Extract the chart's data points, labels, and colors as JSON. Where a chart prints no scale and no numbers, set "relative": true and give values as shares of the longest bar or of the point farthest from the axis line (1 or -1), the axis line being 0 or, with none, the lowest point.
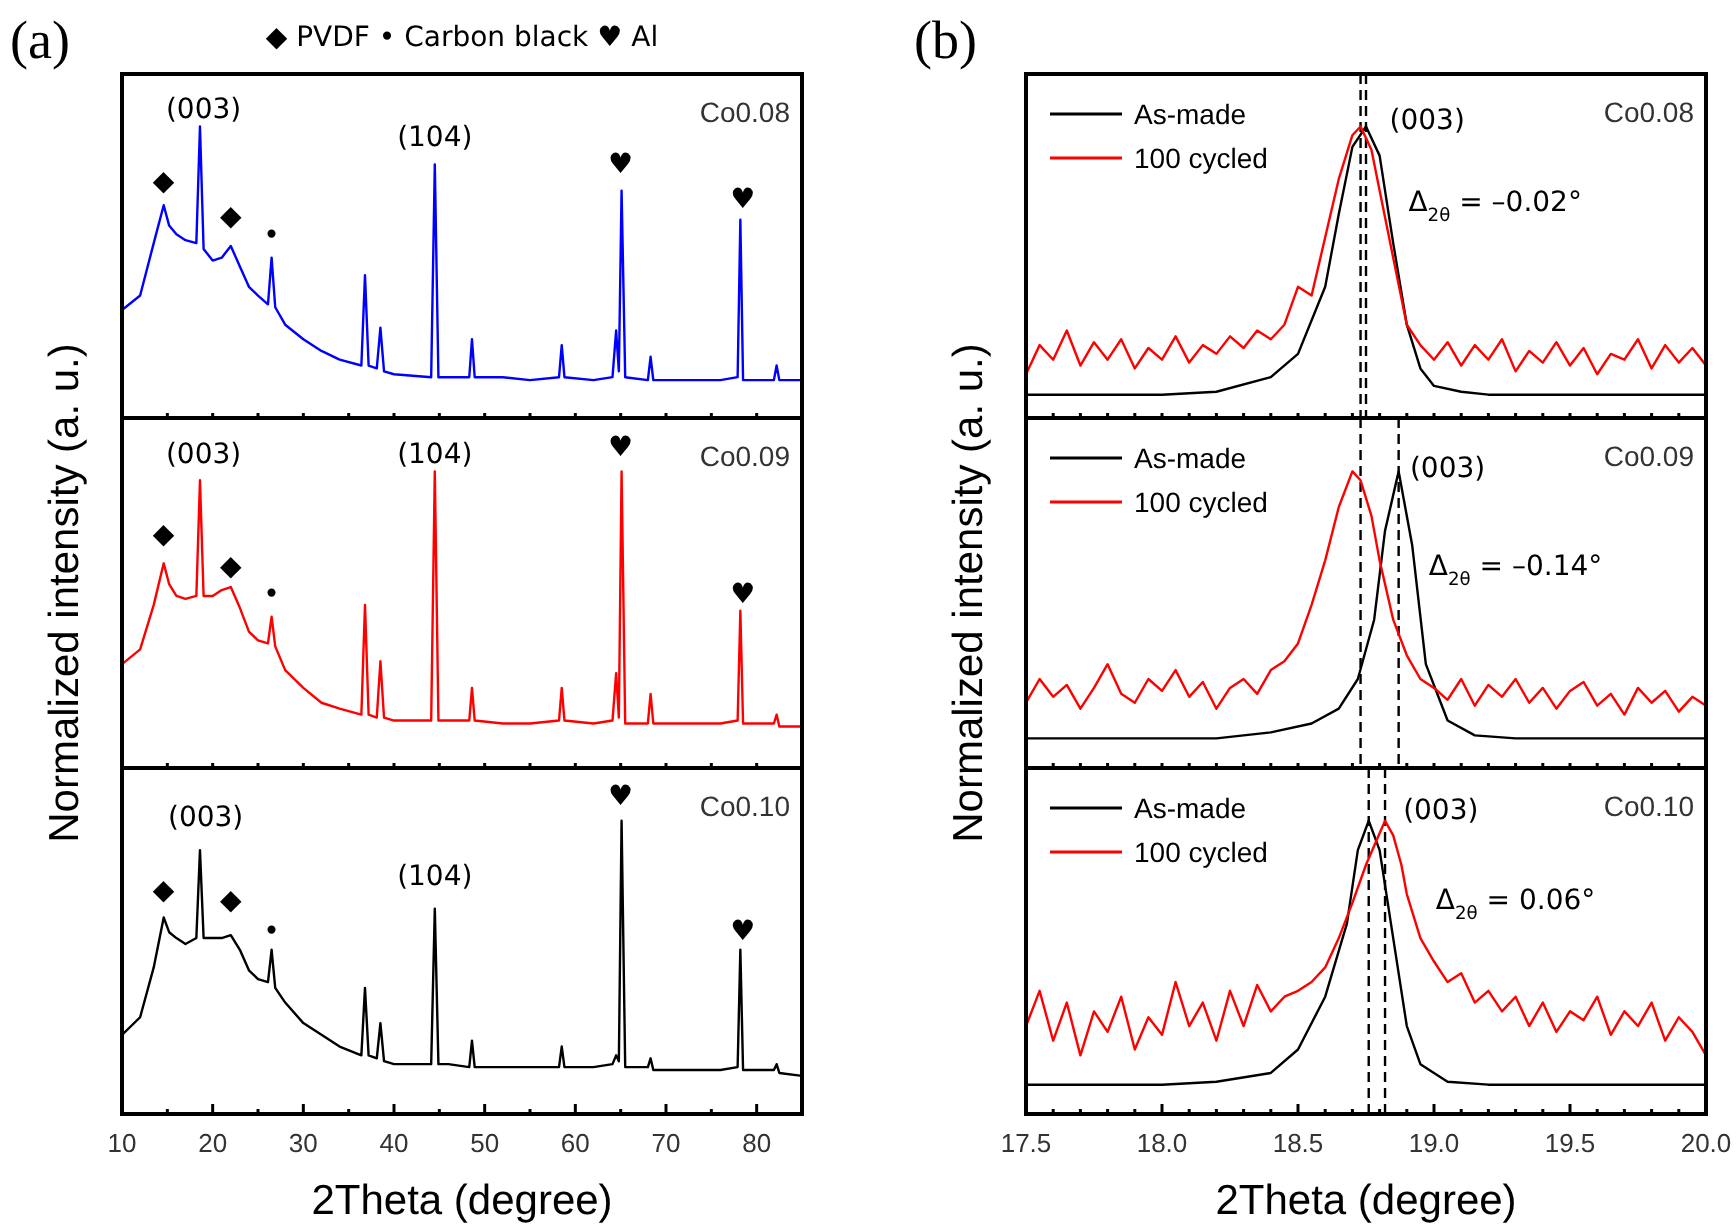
{
  "chart_data": [
    {
      "type": "line",
      "relative": true,
      "title": "(a)",
      "subtitle": "Co0.08",
      "tick_labels": false,
      "x": [
        10,
        12,
        13.5,
        14.6,
        15.2,
        16,
        17,
        18.2,
        18.6,
        19.0,
        20,
        21,
        22,
        23,
        24,
        25,
        26.1,
        26.5,
        26.9,
        28,
        30,
        32,
        34,
        36.4,
        36.8,
        37.2,
        38.1,
        38.5,
        38.9,
        40,
        44.1,
        44.5,
        44.9,
        46,
        48.3,
        48.6,
        48.9,
        52,
        55,
        58.2,
        58.5,
        58.8,
        62,
        64.1,
        64.5,
        64.8,
        65.1,
        65.5,
        68,
        68.3,
        68.6,
        72,
        76,
        77.9,
        78.2,
        78.5,
        81.9,
        82.2,
        82.5,
        85
      ],
      "xlim": [
        10,
        85
      ],
      "xticks": [
        {
          "value": 10,
          "label": null
        },
        {
          "value": 15,
          "label": null
        },
        {
          "value": 20,
          "label": null
        },
        {
          "value": 25,
          "label": null
        },
        {
          "value": 30,
          "label": null
        },
        {
          "value": 35,
          "label": null
        },
        {
          "value": 40,
          "label": null
        },
        {
          "value": 45,
          "label": null
        },
        {
          "value": 50,
          "label": null
        },
        {
          "value": 55,
          "label": null
        },
        {
          "value": 60,
          "label": null
        },
        {
          "value": 65,
          "label": null
        },
        {
          "value": 70,
          "label": null
        },
        {
          "value": 75,
          "label": null
        },
        {
          "value": 80,
          "label": null
        },
        {
          "value": 85,
          "label": null
        }
      ],
      "series": [
        {
          "color": "#0000ff",
          "values": [
            0.37,
            0.42,
            0.6,
            0.73,
            0.66,
            0.63,
            0.61,
            0.6,
            1.0,
            0.58,
            0.54,
            0.55,
            0.59,
            0.52,
            0.45,
            0.42,
            0.39,
            0.55,
            0.38,
            0.32,
            0.27,
            0.23,
            0.2,
            0.18,
            0.49,
            0.18,
            0.17,
            0.31,
            0.16,
            0.15,
            0.14,
            0.87,
            0.14,
            0.14,
            0.14,
            0.27,
            0.14,
            0.14,
            0.13,
            0.14,
            0.25,
            0.14,
            0.13,
            0.14,
            0.3,
            0.16,
            0.78,
            0.14,
            0.13,
            0.21,
            0.13,
            0.13,
            0.13,
            0.14,
            0.68,
            0.13,
            0.13,
            0.18,
            0.13,
            0.13
          ]
        }
      ],
      "annotations": [
        "◆ PVDF   • Carbon black   ♥ Al",
        "(003)",
        "(104)",
        "◆",
        "◆",
        "•",
        "♥",
        "♥"
      ]
    },
    {
      "type": "line",
      "relative": true,
      "subtitle": "Co0.09",
      "tick_labels": false,
      "ylabel": "Normalized intensity (a. u.)",
      "x": [
        10,
        12,
        13.5,
        14.6,
        15.2,
        16,
        17,
        18.2,
        18.6,
        19.0,
        20,
        21,
        22,
        23,
        24,
        25,
        26.1,
        26.5,
        26.9,
        28,
        30,
        32,
        34,
        36.4,
        36.8,
        37.2,
        38.1,
        38.5,
        38.9,
        40,
        44.1,
        44.5,
        44.9,
        46,
        48.3,
        48.6,
        48.9,
        52,
        55,
        58.2,
        58.5,
        58.8,
        62,
        64.1,
        64.5,
        64.8,
        65.1,
        65.5,
        68,
        68.3,
        68.6,
        72,
        76,
        77.9,
        78.2,
        78.5,
        81.9,
        82.2,
        82.5,
        85
      ],
      "xlim": [
        10,
        85
      ],
      "xticks": [
        {
          "value": 10,
          "label": null
        },
        {
          "value": 15,
          "label": null
        },
        {
          "value": 20,
          "label": null
        },
        {
          "value": 25,
          "label": null
        },
        {
          "value": 30,
          "label": null
        },
        {
          "value": 35,
          "label": null
        },
        {
          "value": 40,
          "label": null
        },
        {
          "value": 45,
          "label": null
        },
        {
          "value": 50,
          "label": null
        },
        {
          "value": 55,
          "label": null
        },
        {
          "value": 60,
          "label": null
        },
        {
          "value": 65,
          "label": null
        },
        {
          "value": 70,
          "label": null
        },
        {
          "value": 75,
          "label": null
        },
        {
          "value": 80,
          "label": null
        },
        {
          "value": 85,
          "label": null
        }
      ],
      "series": [
        {
          "color": "#ff0000",
          "values": [
            0.35,
            0.4,
            0.55,
            0.69,
            0.62,
            0.58,
            0.57,
            0.58,
            0.97,
            0.58,
            0.58,
            0.6,
            0.61,
            0.54,
            0.46,
            0.43,
            0.42,
            0.51,
            0.41,
            0.33,
            0.27,
            0.22,
            0.2,
            0.18,
            0.55,
            0.18,
            0.17,
            0.36,
            0.17,
            0.16,
            0.16,
            1.0,
            0.16,
            0.16,
            0.16,
            0.27,
            0.16,
            0.15,
            0.15,
            0.16,
            0.27,
            0.16,
            0.15,
            0.16,
            0.32,
            0.17,
            1.0,
            0.15,
            0.15,
            0.25,
            0.15,
            0.15,
            0.15,
            0.16,
            0.53,
            0.15,
            0.15,
            0.18,
            0.14,
            0.14
          ]
        }
      ],
      "annotations": [
        "(003)",
        "(104)",
        "◆",
        "◆",
        "•",
        "♥",
        "♥"
      ]
    },
    {
      "type": "line",
      "relative": true,
      "subtitle": "Co0.10",
      "tick_labels": "x",
      "xlabel": "2Theta (degree)",
      "x": [
        10,
        12,
        13.5,
        14.6,
        15.2,
        16,
        17,
        18.2,
        18.6,
        19.0,
        20,
        21,
        22,
        23,
        24,
        25,
        26.1,
        26.5,
        26.9,
        28,
        30,
        32,
        34,
        36.4,
        36.8,
        37.2,
        38.1,
        38.5,
        38.9,
        40,
        44.1,
        44.5,
        44.9,
        46,
        48.3,
        48.6,
        48.9,
        52,
        55,
        58.2,
        58.5,
        58.8,
        62,
        64.1,
        64.5,
        64.8,
        65.1,
        65.5,
        68,
        68.3,
        68.6,
        72,
        76,
        77.9,
        78.2,
        78.5,
        81.9,
        82.2,
        82.5,
        85
      ],
      "xlim": [
        10,
        85
      ],
      "xticks": [
        10,
        {
          "value": 15,
          "label": null
        },
        20,
        {
          "value": 25,
          "label": null
        },
        30,
        {
          "value": 35,
          "label": null
        },
        40,
        {
          "value": 45,
          "label": null
        },
        50,
        {
          "value": 55,
          "label": null
        },
        60,
        {
          "value": 65,
          "label": null
        },
        70,
        {
          "value": 75,
          "label": null
        },
        80,
        {
          "value": 85,
          "label": null
        }
      ],
      "series": [
        {
          "color": "#000000",
          "values": [
            0.27,
            0.33,
            0.5,
            0.67,
            0.62,
            0.6,
            0.58,
            0.6,
            0.9,
            0.6,
            0.6,
            0.6,
            0.61,
            0.56,
            0.49,
            0.46,
            0.45,
            0.56,
            0.43,
            0.38,
            0.31,
            0.27,
            0.23,
            0.2,
            0.43,
            0.2,
            0.19,
            0.31,
            0.18,
            0.17,
            0.17,
            0.7,
            0.17,
            0.17,
            0.16,
            0.25,
            0.16,
            0.16,
            0.16,
            0.16,
            0.23,
            0.16,
            0.16,
            0.17,
            0.2,
            0.18,
            1.0,
            0.16,
            0.16,
            0.19,
            0.15,
            0.15,
            0.15,
            0.16,
            0.56,
            0.15,
            0.15,
            0.17,
            0.14,
            0.13
          ]
        }
      ],
      "annotations": [
        "(003)",
        "(104)",
        "◆",
        "◆",
        "•",
        "♥",
        "♥"
      ]
    },
    {
      "type": "line",
      "relative": true,
      "title": "(b)",
      "subtitle": "Co0.08",
      "tick_labels": false,
      "legend": "top left",
      "line_style": "solid",
      "xlim": [
        17.5,
        20.0
      ],
      "xticks": [
        {
          "value": 17.5,
          "label": null
        },
        {
          "value": 17.6,
          "label": null
        },
        {
          "value": 17.7,
          "label": null
        },
        {
          "value": 17.8,
          "label": null
        },
        {
          "value": 17.9,
          "label": null
        },
        {
          "value": 18,
          "label": null
        },
        {
          "value": 18.1,
          "label": null
        },
        {
          "value": 18.2,
          "label": null
        },
        {
          "value": 18.3,
          "label": null
        },
        {
          "value": 18.4,
          "label": null
        },
        {
          "value": 18.5,
          "label": null
        },
        {
          "value": 18.6,
          "label": null
        },
        {
          "value": 18.7,
          "label": null
        },
        {
          "value": 18.8,
          "label": null
        },
        {
          "value": 18.9,
          "label": null
        },
        {
          "value": 19,
          "label": null
        },
        {
          "value": 19.1,
          "label": null
        },
        {
          "value": 19.2,
          "label": null
        },
        {
          "value": 19.3,
          "label": null
        },
        {
          "value": 19.4,
          "label": null
        },
        {
          "value": 19.5,
          "label": null
        },
        {
          "value": 19.6,
          "label": null
        },
        {
          "value": 19.7,
          "label": null
        },
        {
          "value": 19.8,
          "label": null
        },
        {
          "value": 19.9,
          "label": null
        },
        {
          "value": 20,
          "label": null
        }
      ],
      "series": [
        {
          "name": "As-made",
          "color": "#000000",
          "x": [
            17.5,
            18.0,
            18.2,
            18.4,
            18.5,
            18.6,
            18.65,
            18.7,
            18.75,
            18.8,
            18.85,
            18.9,
            18.95,
            19.0,
            19.1,
            19.2,
            20.0
          ],
          "values": [
            0.08,
            0.08,
            0.09,
            0.14,
            0.22,
            0.45,
            0.7,
            0.93,
            1.0,
            0.9,
            0.6,
            0.32,
            0.17,
            0.11,
            0.09,
            0.08,
            0.08
          ]
        },
        {
          "name": "100 cycled",
          "color": "#ff0000",
          "x": [
            17.5,
            17.55,
            17.6,
            17.65,
            17.7,
            17.75,
            17.8,
            17.85,
            17.9,
            17.95,
            18.0,
            18.05,
            18.1,
            18.15,
            18.2,
            18.25,
            18.3,
            18.35,
            18.4,
            18.45,
            18.5,
            18.55,
            18.6,
            18.65,
            18.7,
            18.73,
            18.77,
            18.8,
            18.85,
            18.9,
            18.95,
            19.0,
            19.05,
            19.1,
            19.15,
            19.2,
            19.25,
            19.3,
            19.35,
            19.4,
            19.45,
            19.5,
            19.55,
            19.6,
            19.65,
            19.7,
            19.75,
            19.8,
            19.85,
            19.9,
            19.95,
            20.0
          ],
          "values": [
            0.15,
            0.25,
            0.2,
            0.3,
            0.18,
            0.26,
            0.2,
            0.27,
            0.17,
            0.24,
            0.2,
            0.28,
            0.19,
            0.25,
            0.22,
            0.28,
            0.24,
            0.3,
            0.27,
            0.32,
            0.45,
            0.42,
            0.62,
            0.82,
            0.97,
            1.0,
            0.92,
            0.78,
            0.55,
            0.32,
            0.25,
            0.2,
            0.26,
            0.18,
            0.25,
            0.2,
            0.27,
            0.16,
            0.23,
            0.19,
            0.26,
            0.18,
            0.24,
            0.15,
            0.22,
            0.2,
            0.27,
            0.17,
            0.25,
            0.19,
            0.24,
            0.18
          ]
        }
      ],
      "ref_lines": [
        {
          "axis": "x",
          "value": 18.73,
          "line_style": "dashed",
          "color": "#000000"
        },
        {
          "axis": "x",
          "value": 18.75,
          "line_style": "dashed",
          "color": "#000000"
        }
      ],
      "annotations": [
        "(003)",
        "Δ$_{2θ}$ = –0.02°"
      ]
    },
    {
      "type": "line",
      "relative": true,
      "subtitle": "Co0.09",
      "tick_labels": false,
      "legend": "top left",
      "line_style": "solid",
      "ylabel": "Normalized intensity (a. u.)",
      "xlim": [
        17.5,
        20.0
      ],
      "xticks": [
        {
          "value": 17.5,
          "label": null
        },
        {
          "value": 17.6,
          "label": null
        },
        {
          "value": 17.7,
          "label": null
        },
        {
          "value": 17.8,
          "label": null
        },
        {
          "value": 17.9,
          "label": null
        },
        {
          "value": 18,
          "label": null
        },
        {
          "value": 18.1,
          "label": null
        },
        {
          "value": 18.2,
          "label": null
        },
        {
          "value": 18.3,
          "label": null
        },
        {
          "value": 18.4,
          "label": null
        },
        {
          "value": 18.5,
          "label": null
        },
        {
          "value": 18.6,
          "label": null
        },
        {
          "value": 18.7,
          "label": null
        },
        {
          "value": 18.8,
          "label": null
        },
        {
          "value": 18.9,
          "label": null
        },
        {
          "value": 19,
          "label": null
        },
        {
          "value": 19.1,
          "label": null
        },
        {
          "value": 19.2,
          "label": null
        },
        {
          "value": 19.3,
          "label": null
        },
        {
          "value": 19.4,
          "label": null
        },
        {
          "value": 19.5,
          "label": null
        },
        {
          "value": 19.6,
          "label": null
        },
        {
          "value": 19.7,
          "label": null
        },
        {
          "value": 19.8,
          "label": null
        },
        {
          "value": 19.9,
          "label": null
        },
        {
          "value": 20,
          "label": null
        }
      ],
      "series": [
        {
          "name": "As-made",
          "color": "#000000",
          "x": [
            17.5,
            18.0,
            18.2,
            18.4,
            18.55,
            18.65,
            18.72,
            18.78,
            18.82,
            18.87,
            18.92,
            18.97,
            19.05,
            19.15,
            19.3,
            20.0
          ],
          "values": [
            0.1,
            0.1,
            0.1,
            0.12,
            0.15,
            0.2,
            0.3,
            0.5,
            0.8,
            1.0,
            0.75,
            0.35,
            0.16,
            0.11,
            0.1,
            0.1
          ]
        },
        {
          "name": "100 cycled",
          "color": "#ff0000",
          "x": [
            17.5,
            17.55,
            17.6,
            17.65,
            17.7,
            17.75,
            17.8,
            17.85,
            17.9,
            17.95,
            18.0,
            18.05,
            18.1,
            18.15,
            18.2,
            18.25,
            18.3,
            18.35,
            18.4,
            18.45,
            18.5,
            18.55,
            18.6,
            18.65,
            18.7,
            18.73,
            18.77,
            18.8,
            18.85,
            18.9,
            18.95,
            19.0,
            19.05,
            19.1,
            19.15,
            19.2,
            19.25,
            19.3,
            19.35,
            19.4,
            19.45,
            19.5,
            19.55,
            19.6,
            19.65,
            19.7,
            19.75,
            19.8,
            19.85,
            19.9,
            19.95,
            20.0
          ],
          "values": [
            0.22,
            0.3,
            0.24,
            0.28,
            0.2,
            0.27,
            0.35,
            0.25,
            0.22,
            0.3,
            0.26,
            0.33,
            0.24,
            0.29,
            0.2,
            0.27,
            0.3,
            0.25,
            0.33,
            0.36,
            0.42,
            0.55,
            0.7,
            0.88,
            1.0,
            0.97,
            0.85,
            0.7,
            0.5,
            0.38,
            0.3,
            0.27,
            0.23,
            0.3,
            0.21,
            0.28,
            0.24,
            0.3,
            0.22,
            0.27,
            0.2,
            0.26,
            0.29,
            0.21,
            0.25,
            0.18,
            0.27,
            0.22,
            0.26,
            0.19,
            0.24,
            0.21
          ]
        }
      ],
      "ref_lines": [
        {
          "axis": "x",
          "value": 18.73,
          "line_style": "dashed",
          "color": "#000000"
        },
        {
          "axis": "x",
          "value": 18.87,
          "line_style": "dashed",
          "color": "#000000"
        }
      ],
      "annotations": [
        "(003)",
        "Δ$_{2θ}$ = –0.14°"
      ]
    },
    {
      "type": "line",
      "relative": true,
      "subtitle": "Co0.10",
      "tick_labels": "x",
      "legend": "top left",
      "line_style": "solid",
      "xlabel": "2Theta (degree)",
      "xlim": [
        17.5,
        20.0
      ],
      "xticks": [
        17.5,
        {
          "value": 17.6,
          "label": null
        },
        {
          "value": 17.7,
          "label": null
        },
        {
          "value": 17.8,
          "label": null
        },
        {
          "value": 17.9,
          "label": null
        },
        {
          "value": 18,
          "label": "18.0"
        },
        {
          "value": 18.1,
          "label": null
        },
        {
          "value": 18.2,
          "label": null
        },
        {
          "value": 18.3,
          "label": null
        },
        {
          "value": 18.4,
          "label": null
        },
        18.5,
        {
          "value": 18.6,
          "label": null
        },
        {
          "value": 18.7,
          "label": null
        },
        {
          "value": 18.8,
          "label": null
        },
        {
          "value": 18.9,
          "label": null
        },
        {
          "value": 19,
          "label": "19.0"
        },
        {
          "value": 19.1,
          "label": null
        },
        {
          "value": 19.2,
          "label": null
        },
        {
          "value": 19.3,
          "label": null
        },
        {
          "value": 19.4,
          "label": null
        },
        19.5,
        {
          "value": 19.6,
          "label": null
        },
        {
          "value": 19.7,
          "label": null
        },
        {
          "value": 19.8,
          "label": null
        },
        {
          "value": 19.9,
          "label": null
        },
        {
          "value": 20,
          "label": "20.0"
        }
      ],
      "series": [
        {
          "name": "As-made",
          "color": "#000000",
          "x": [
            17.5,
            18.0,
            18.2,
            18.4,
            18.5,
            18.6,
            18.68,
            18.72,
            18.76,
            18.8,
            18.85,
            18.9,
            18.95,
            19.05,
            19.2,
            20.0
          ],
          "values": [
            0.1,
            0.1,
            0.11,
            0.14,
            0.22,
            0.4,
            0.65,
            0.9,
            1.0,
            0.9,
            0.6,
            0.3,
            0.17,
            0.11,
            0.1,
            0.1
          ]
        },
        {
          "name": "100 cycled",
          "color": "#ff0000",
          "x": [
            17.5,
            17.55,
            17.6,
            17.65,
            17.7,
            17.75,
            17.8,
            17.85,
            17.9,
            17.95,
            18.0,
            18.05,
            18.1,
            18.15,
            18.2,
            18.25,
            18.3,
            18.35,
            18.4,
            18.45,
            18.5,
            18.55,
            18.6,
            18.65,
            18.7,
            18.75,
            18.82,
            18.85,
            18.88,
            18.9,
            18.95,
            19.0,
            19.05,
            19.1,
            19.15,
            19.2,
            19.25,
            19.3,
            19.35,
            19.4,
            19.45,
            19.5,
            19.55,
            19.6,
            19.65,
            19.7,
            19.75,
            19.8,
            19.85,
            19.9,
            19.95,
            20.0
          ],
          "values": [
            0.3,
            0.42,
            0.25,
            0.38,
            0.2,
            0.35,
            0.28,
            0.4,
            0.22,
            0.33,
            0.27,
            0.45,
            0.3,
            0.38,
            0.25,
            0.42,
            0.3,
            0.44,
            0.35,
            0.4,
            0.42,
            0.45,
            0.5,
            0.6,
            0.72,
            0.85,
            1.0,
            0.95,
            0.85,
            0.75,
            0.6,
            0.52,
            0.45,
            0.48,
            0.38,
            0.42,
            0.35,
            0.4,
            0.3,
            0.38,
            0.28,
            0.35,
            0.32,
            0.4,
            0.27,
            0.35,
            0.3,
            0.38,
            0.25,
            0.33,
            0.28,
            0.2
          ]
        }
      ],
      "ref_lines": [
        {
          "axis": "x",
          "value": 18.76,
          "line_style": "dashed",
          "color": "#000000"
        },
        {
          "axis": "x",
          "value": 18.82,
          "line_style": "dashed",
          "color": "#000000"
        }
      ],
      "annotations": [
        "(003)",
        "Δ$_{2θ}$ = 0.06°"
      ]
    }
  ]
}
